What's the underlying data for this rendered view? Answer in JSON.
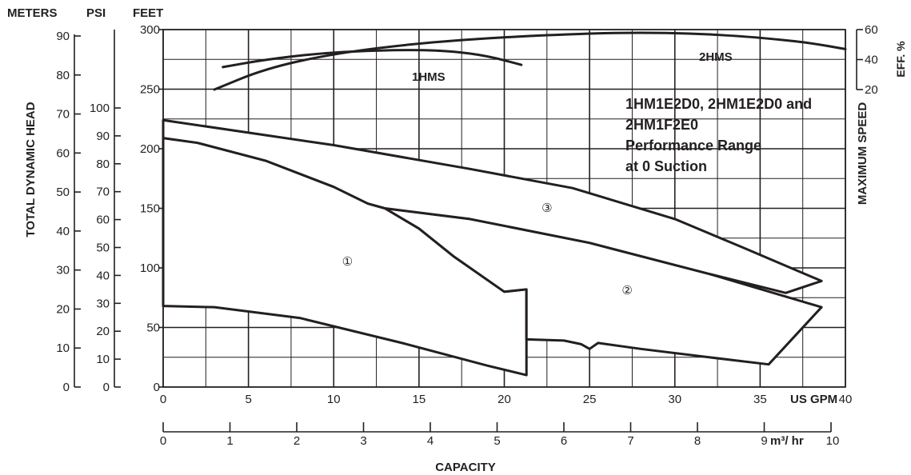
{
  "chart_data": {
    "type": "line",
    "x_axis": {
      "label": "US GPM",
      "range": [
        0,
        40
      ],
      "ticks": [
        "0",
        "5",
        "10",
        "15",
        "20",
        "25",
        "30",
        "35",
        "40"
      ]
    },
    "x_axis_secondary": {
      "title": "CAPACITY",
      "unit": "m³/ hr",
      "range": [
        0,
        10
      ],
      "ticks": [
        "0",
        "1",
        "2",
        "3",
        "4",
        "5",
        "6",
        "7",
        "8",
        "9",
        "10"
      ]
    },
    "y_axis_feet": {
      "label": "FEET",
      "range": [
        0,
        300
      ],
      "ticks": [
        "0",
        "50",
        "100",
        "150",
        "200",
        "250",
        "300"
      ]
    },
    "y_axis_psi": {
      "label": "PSI",
      "range": [
        0,
        100
      ],
      "ticks": [
        "0",
        "10",
        "20",
        "30",
        "40",
        "50",
        "60",
        "70",
        "80",
        "90",
        "100"
      ]
    },
    "y_axis_meters": {
      "label": "METERS",
      "range": [
        0,
        90
      ],
      "ticks": [
        "0",
        "10",
        "20",
        "30",
        "40",
        "50",
        "60",
        "70",
        "80",
        "90"
      ]
    },
    "y_axis_title": "TOTAL DYNAMIC HEAD",
    "efficiency_axis": {
      "label": "EFF. %",
      "range": [
        20,
        60
      ],
      "ticks": [
        "20",
        "40",
        "60"
      ]
    },
    "right_title": "MAXIMUM SPEED",
    "title_lines": [
      "1HM1E2D0, 2HM1E2D0 and",
      "2HM1F2E0",
      "Performance Range",
      "at 0 Suction"
    ],
    "grid": true,
    "series": [
      {
        "name": "1HMS",
        "kind": "efficiency",
        "unit": "%",
        "x": [
          3.5,
          6,
          9,
          12,
          15,
          17,
          19,
          21
        ],
        "y": [
          35,
          40,
          44,
          46,
          46.5,
          45.5,
          42.5,
          36.5
        ]
      },
      {
        "name": "2HMS",
        "kind": "efficiency",
        "unit": "%",
        "x": [
          3,
          6,
          10,
          15,
          20,
          25,
          28,
          31,
          34,
          36,
          38,
          40
        ],
        "y": [
          20,
          34,
          44,
          51,
          55,
          57.5,
          58,
          57.5,
          55.5,
          53.5,
          51,
          47
        ]
      }
    ],
    "regions": [
      {
        "label": "①",
        "x": [
          0,
          0,
          2,
          6,
          10,
          12,
          13,
          15,
          17,
          20,
          21.3,
          21.3,
          19,
          14,
          8,
          3,
          0
        ],
        "y": [
          68,
          209,
          205,
          190,
          168,
          154,
          150,
          133,
          110,
          80,
          82,
          10,
          18,
          37,
          58,
          67,
          68
        ]
      },
      {
        "label": "②",
        "x": [
          13,
          18,
          25,
          32,
          38.6,
          35.5,
          32,
          28,
          25.5,
          25,
          24.5,
          23.5,
          21.3,
          21.3,
          20,
          17,
          15,
          13
        ],
        "y": [
          150,
          141,
          121,
          95,
          67,
          19,
          25,
          32,
          37,
          32,
          36,
          39,
          40,
          82,
          80,
          110,
          133,
          150
        ]
      },
      {
        "label": "③",
        "x": [
          0,
          10,
          18,
          24,
          30,
          34,
          38.6,
          36.5,
          32,
          25,
          18,
          13,
          12,
          10,
          6,
          2,
          0
        ],
        "y": [
          224,
          203,
          183,
          167,
          141,
          117,
          89,
          79,
          95,
          121,
          141,
          150,
          154,
          168,
          190,
          205,
          209
        ]
      }
    ],
    "efficiency_curve_labels": {
      "1HMS": "1HMS",
      "2HMS": "2HMS"
    }
  }
}
